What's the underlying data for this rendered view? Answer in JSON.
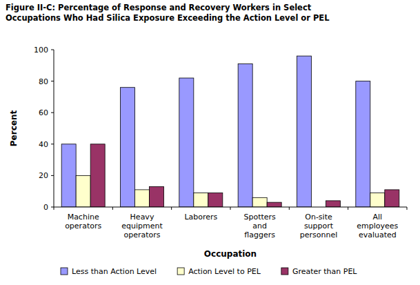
{
  "chart_data": {
    "type": "bar",
    "title": "Figure II-C: Percentage of Response and Recovery Workers in Select\nOccupations Who Had Silica Exposure Exceeding the Action Level or PEL",
    "x_label": "Occupation",
    "y_label": "Percent",
    "categories": [
      "Machine operators",
      "Heavy equipment operators",
      "Laborers",
      "Spotters and flaggers",
      "On-site support personnel",
      "All employees evaluated"
    ],
    "series": [
      {
        "name": "Less than Action Level",
        "color": "#9999ff",
        "values": [
          40,
          76,
          82,
          91,
          96,
          80
        ]
      },
      {
        "name": "Action Level to PEL",
        "color": "#ffffcc",
        "values": [
          20,
          11,
          9,
          6,
          0,
          9
        ]
      },
      {
        "name": "Greater than PEL",
        "color": "#993366",
        "values": [
          40,
          13,
          9,
          3,
          4,
          11
        ]
      }
    ],
    "ylim": [
      0,
      100
    ],
    "yticks": [
      0,
      20,
      40,
      60,
      80,
      100
    ],
    "grid": false,
    "legend": "bottom"
  }
}
